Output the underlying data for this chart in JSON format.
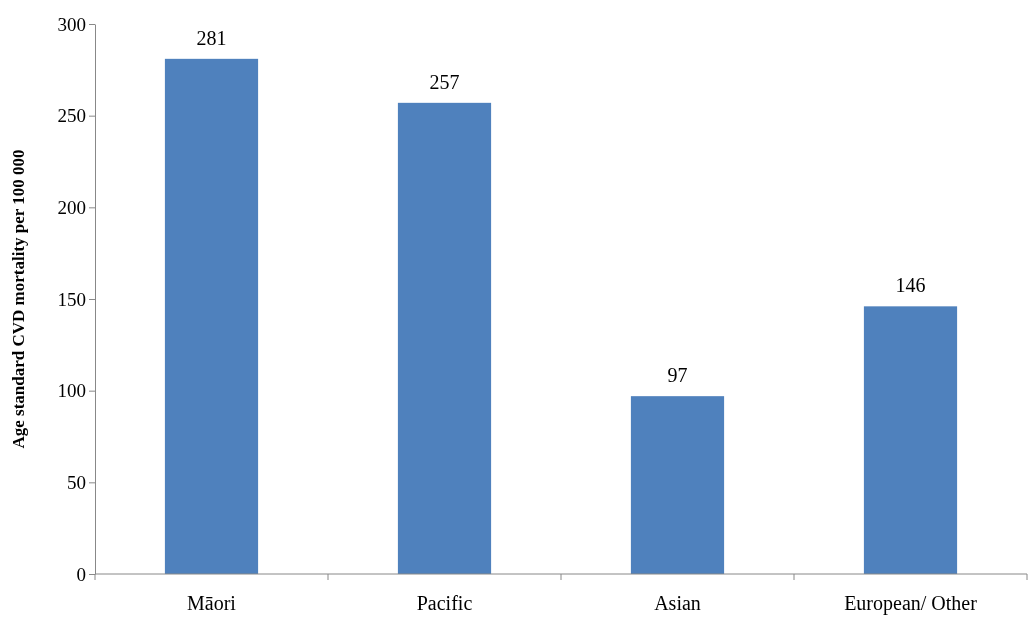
{
  "chart_data": {
    "type": "bar",
    "ylabel": "Age standard CVD mortality per 100 000",
    "categories": [
      "Māori",
      "Pacific",
      "Asian",
      "European/ Other"
    ],
    "values": [
      281,
      257,
      97,
      146
    ],
    "color": "#4f81bd",
    "ylim": [
      0,
      300
    ],
    "yticks": [
      0,
      50,
      100,
      150,
      200,
      250,
      300
    ],
    "grid": false,
    "data_labels": true
  }
}
